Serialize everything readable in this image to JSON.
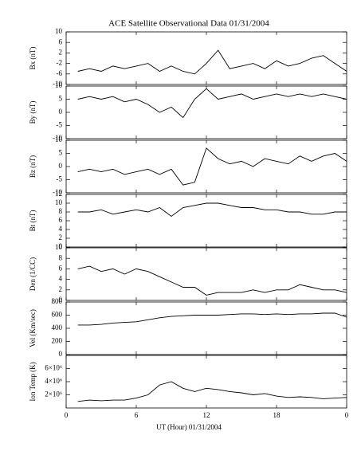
{
  "chart_data": [
    {
      "type": "line",
      "title": "ACE Satellite Observational Data   01/31/2004",
      "ylabel": "Bx (nT)",
      "x": [
        1,
        2,
        3,
        4,
        5,
        6,
        7,
        8,
        9,
        10,
        11,
        12,
        13,
        14,
        15,
        16,
        17,
        18,
        19,
        20,
        21,
        22,
        23,
        24
      ],
      "series": [
        {
          "color": "#000000",
          "values": [
            -5,
            -4,
            -5,
            -3,
            -4,
            -3,
            -2,
            -5,
            -3,
            -5,
            -6,
            -2,
            3,
            -4,
            -3,
            -2,
            -4,
            -1,
            -3,
            -2,
            0,
            1,
            -2,
            -5
          ]
        }
      ],
      "xlim": [
        0,
        24
      ],
      "ylim": [
        -10,
        10
      ],
      "yticks": [
        -10,
        -6,
        -2,
        2,
        6,
        10
      ]
    },
    {
      "type": "line",
      "ylabel": "By (nT)",
      "x": [
        1,
        2,
        3,
        4,
        5,
        6,
        7,
        8,
        9,
        10,
        11,
        12,
        13,
        14,
        15,
        16,
        17,
        18,
        19,
        20,
        21,
        22,
        23,
        24
      ],
      "series": [
        {
          "color": "#000000",
          "values": [
            5,
            6,
            5,
            6,
            4,
            5,
            3,
            0,
            2,
            -2,
            5,
            9,
            5,
            6,
            7,
            5,
            6,
            7,
            6,
            7,
            6,
            7,
            6,
            5
          ]
        }
      ],
      "xlim": [
        0,
        24
      ],
      "ylim": [
        -10,
        10
      ],
      "yticks": [
        -10,
        -5,
        0,
        5,
        10
      ]
    },
    {
      "type": "line",
      "ylabel": "Bz (nT)",
      "x": [
        1,
        2,
        3,
        4,
        5,
        6,
        7,
        8,
        9,
        10,
        11,
        12,
        13,
        14,
        15,
        16,
        17,
        18,
        19,
        20,
        21,
        22,
        23,
        24
      ],
      "series": [
        {
          "color": "#000000",
          "values": [
            -2,
            -1,
            -2,
            -1,
            -3,
            -2,
            -1,
            -3,
            -1,
            -7,
            -6,
            7,
            3,
            1,
            2,
            0,
            3,
            2,
            1,
            4,
            2,
            4,
            5,
            2
          ]
        }
      ],
      "xlim": [
        0,
        24
      ],
      "ylim": [
        -10,
        10
      ],
      "yticks": [
        -10,
        -5,
        0,
        5,
        10
      ]
    },
    {
      "type": "line",
      "ylabel": "Bt (nT)",
      "x": [
        1,
        2,
        3,
        4,
        5,
        6,
        7,
        8,
        9,
        10,
        11,
        12,
        13,
        14,
        15,
        16,
        17,
        18,
        19,
        20,
        21,
        22,
        23,
        24
      ],
      "series": [
        {
          "color": "#000000",
          "values": [
            8,
            8,
            8.5,
            7.5,
            8,
            8.5,
            8,
            9,
            7,
            9,
            9.5,
            10,
            10,
            9.5,
            9,
            9,
            8.5,
            8.5,
            8,
            8,
            7.5,
            7.5,
            8,
            8
          ]
        }
      ],
      "xlim": [
        0,
        24
      ],
      "ylim": [
        0,
        12
      ],
      "yticks": [
        0,
        2,
        4,
        6,
        8,
        10,
        12
      ]
    },
    {
      "type": "line",
      "ylabel": "Den (1/CC)",
      "x": [
        1,
        2,
        3,
        4,
        5,
        6,
        7,
        8,
        9,
        10,
        11,
        12,
        13,
        14,
        15,
        16,
        17,
        18,
        19,
        20,
        21,
        22,
        23,
        24
      ],
      "series": [
        {
          "color": "#000000",
          "values": [
            6,
            6.5,
            5.5,
            6,
            5,
            6,
            5.5,
            4.5,
            3.5,
            2.5,
            2.5,
            1,
            1.5,
            1.5,
            1.5,
            2,
            1.5,
            2,
            2,
            3,
            2.5,
            2,
            2,
            1.5
          ]
        }
      ],
      "xlim": [
        0,
        24
      ],
      "ylim": [
        0,
        10
      ],
      "yticks": [
        0,
        2,
        4,
        6,
        8,
        10
      ]
    },
    {
      "type": "line",
      "ylabel": "Vel (Km/sec)",
      "x": [
        1,
        2,
        3,
        4,
        5,
        6,
        7,
        8,
        9,
        10,
        11,
        12,
        13,
        14,
        15,
        16,
        17,
        18,
        19,
        20,
        21,
        22,
        23,
        24
      ],
      "series": [
        {
          "color": "#000000",
          "values": [
            450,
            450,
            460,
            480,
            490,
            500,
            530,
            560,
            580,
            590,
            600,
            600,
            600,
            610,
            620,
            620,
            610,
            620,
            610,
            620,
            620,
            630,
            630,
            570
          ]
        }
      ],
      "xlim": [
        0,
        24
      ],
      "ylim": [
        0,
        800
      ],
      "yticks": [
        0,
        200,
        400,
        600,
        800
      ]
    },
    {
      "type": "line",
      "ylabel": "Ion Temp (K)",
      "xlabel": "UT (Hour)   01/31/2004",
      "x": [
        1,
        2,
        3,
        4,
        5,
        6,
        7,
        8,
        9,
        10,
        11,
        12,
        13,
        14,
        15,
        16,
        17,
        18,
        19,
        20,
        21,
        22,
        23,
        24
      ],
      "series": [
        {
          "color": "#000000",
          "values": [
            1000000,
            1200000,
            1100000,
            1200000,
            1200000,
            1500000,
            2000000,
            3500000,
            4000000,
            3000000,
            2500000,
            3000000,
            2800000,
            2500000,
            2300000,
            2000000,
            2200000,
            1800000,
            1600000,
            1700000,
            1600000,
            1400000,
            1500000,
            1600000
          ]
        }
      ],
      "xlim": [
        0,
        24
      ],
      "ylim": [
        0,
        8000000
      ],
      "yticks": [
        {
          "value": 2000000,
          "label": "2×10⁶"
        },
        {
          "value": 4000000,
          "label": "4×10⁶"
        },
        {
          "value": 6000000,
          "label": "6×10⁶"
        }
      ],
      "xticks": [
        0,
        6,
        12,
        18,
        {
          "value": 24,
          "label": "0"
        }
      ]
    }
  ]
}
